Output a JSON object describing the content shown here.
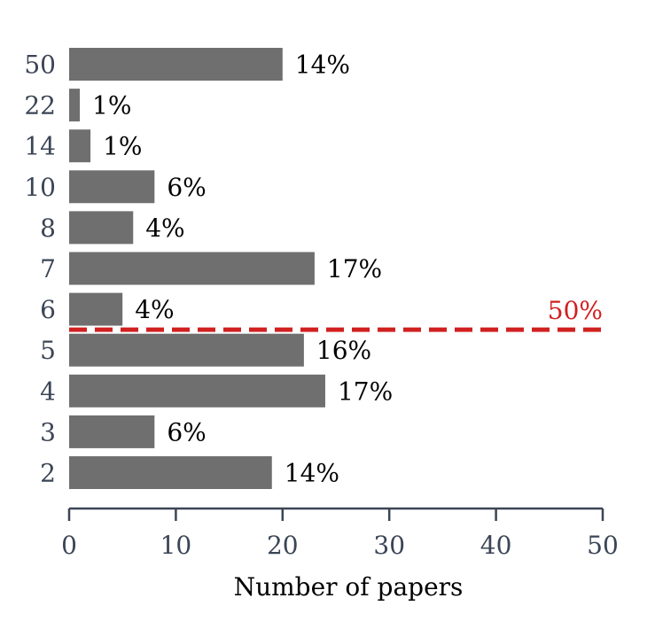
{
  "colors": {
    "bar": "#6f6f6f",
    "axis": "#3b4556",
    "reference": "#d02020"
  },
  "chart_data": {
    "type": "bar",
    "orientation": "horizontal",
    "categories": [
      "50",
      "22",
      "14",
      "10",
      "8",
      "7",
      "6",
      "5",
      "4",
      "3",
      "2"
    ],
    "values": [
      20,
      1,
      2,
      8,
      6,
      23,
      5,
      22,
      24,
      8,
      19
    ],
    "data_labels": [
      "14%",
      "1%",
      "1%",
      "6%",
      "4%",
      "17%",
      "4%",
      "16%",
      "17%",
      "6%",
      "14%"
    ],
    "xlabel": "Number of papers",
    "ylabel": "",
    "title": "",
    "xlim": [
      0,
      50
    ],
    "xticks": [
      0,
      10,
      20,
      30,
      40,
      50
    ],
    "grid": false,
    "reference_line": {
      "label": "50%",
      "between": [
        "6",
        "5"
      ],
      "style": "dashed"
    }
  }
}
